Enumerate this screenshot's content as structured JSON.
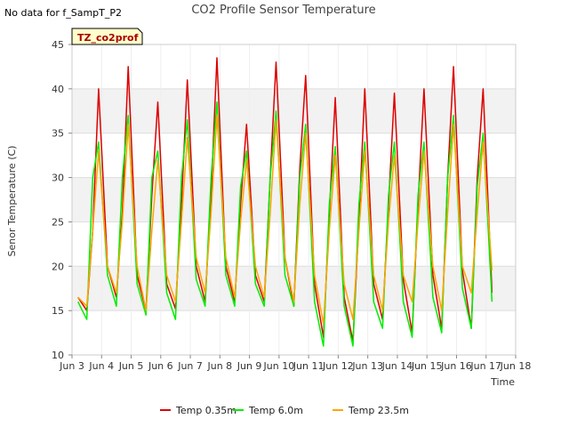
{
  "header": {
    "note": "No data for f_SampT_P2",
    "badge": "TZ_co2prof"
  },
  "chart_data": {
    "type": "line",
    "title": "CO2 Profile Sensor Temperature",
    "xlabel": "Time",
    "ylabel": "Senor Temperature (C)",
    "xlim": [
      3,
      18
    ],
    "ylim": [
      10,
      45
    ],
    "x_ticks": [
      3,
      4,
      5,
      6,
      7,
      8,
      9,
      10,
      11,
      12,
      13,
      14,
      15,
      16,
      17,
      18
    ],
    "x_tick_labels": [
      "Jun 3",
      "Jun 4",
      "Jun 5",
      "Jun 6",
      "Jun 7",
      "Jun 8",
      "Jun 9",
      "Jun 10",
      "Jun 11",
      "Jun 12",
      "Jun 13",
      "Jun 14",
      "Jun 15",
      "Jun 16",
      "Jun 17",
      "Jun 18"
    ],
    "y_ticks": [
      10,
      15,
      20,
      25,
      30,
      35,
      40,
      45
    ],
    "y_tick_labels": [
      "10",
      "15",
      "20",
      "25",
      "30",
      "35",
      "40",
      "45"
    ],
    "series": [
      {
        "name": "Temp 0.35m",
        "color": "#dd0000",
        "x": [
          3.2,
          3.5,
          3.7,
          3.9,
          4.2,
          4.5,
          4.7,
          4.9,
          5.2,
          5.5,
          5.7,
          5.9,
          6.2,
          6.5,
          6.7,
          6.9,
          7.2,
          7.5,
          7.7,
          7.9,
          8.2,
          8.5,
          8.7,
          8.9,
          9.2,
          9.5,
          9.7,
          9.9,
          10.2,
          10.5,
          10.7,
          10.9,
          11.2,
          11.5,
          11.7,
          11.9,
          12.2,
          12.5,
          12.7,
          12.9,
          13.2,
          13.5,
          13.7,
          13.9,
          14.2,
          14.5,
          14.7,
          14.9,
          15.2,
          15.5,
          15.7,
          15.9,
          16.2,
          16.5,
          16.7,
          16.9,
          17.2
        ],
        "y": [
          16.5,
          15.0,
          24.0,
          40.0,
          20.0,
          16.5,
          26.0,
          42.5,
          19.0,
          15.0,
          28.0,
          38.5,
          18.0,
          15.2,
          27.0,
          41.0,
          20.0,
          16.0,
          28.0,
          43.5,
          20.0,
          16.0,
          27.0,
          36.0,
          19.0,
          16.0,
          30.0,
          43.0,
          21.0,
          15.5,
          31.0,
          41.5,
          18.0,
          12.0,
          26.0,
          39.0,
          16.5,
          11.5,
          25.0,
          40.0,
          18.0,
          14.0,
          27.0,
          39.5,
          18.5,
          12.5,
          27.0,
          40.0,
          19.0,
          13.0,
          30.0,
          42.5,
          19.5,
          13.0,
          30.0,
          40.0,
          17.0
        ]
      },
      {
        "name": "Temp 6.0m",
        "color": "#00ee00",
        "x": [
          3.2,
          3.5,
          3.7,
          3.9,
          4.2,
          4.5,
          4.7,
          4.9,
          5.2,
          5.5,
          5.7,
          5.9,
          6.2,
          6.5,
          6.7,
          6.9,
          7.2,
          7.5,
          7.7,
          7.9,
          8.2,
          8.5,
          8.7,
          8.9,
          9.2,
          9.5,
          9.7,
          9.9,
          10.2,
          10.5,
          10.7,
          10.9,
          11.2,
          11.5,
          11.7,
          11.9,
          12.2,
          12.5,
          12.7,
          12.9,
          13.2,
          13.5,
          13.7,
          13.9,
          14.2,
          14.5,
          14.7,
          14.9,
          15.2,
          15.5,
          15.7,
          15.9,
          16.2,
          16.5,
          16.7,
          16.9,
          17.2
        ],
        "y": [
          16.0,
          14.0,
          30.0,
          34.0,
          19.0,
          15.5,
          30.0,
          37.0,
          18.0,
          14.5,
          30.0,
          33.0,
          17.0,
          14.0,
          30.0,
          36.5,
          18.5,
          15.5,
          30.0,
          38.5,
          19.0,
          15.5,
          29.0,
          33.0,
          18.0,
          15.5,
          30.0,
          37.5,
          19.0,
          15.5,
          30.0,
          36.0,
          16.0,
          11.0,
          27.0,
          33.5,
          15.5,
          11.0,
          27.0,
          34.0,
          16.0,
          13.0,
          28.0,
          34.0,
          16.0,
          12.0,
          28.0,
          34.0,
          16.5,
          12.5,
          30.0,
          37.0,
          17.5,
          13.0,
          29.0,
          35.0,
          16.0
        ]
      },
      {
        "name": "Temp 23.5m",
        "color": "#ffa500",
        "x": [
          3.2,
          3.5,
          3.7,
          3.9,
          4.2,
          4.5,
          4.7,
          4.9,
          5.2,
          5.5,
          5.7,
          5.9,
          6.2,
          6.5,
          6.7,
          6.9,
          7.2,
          7.5,
          7.7,
          7.9,
          8.2,
          8.5,
          8.7,
          8.9,
          9.2,
          9.5,
          9.7,
          9.9,
          10.2,
          10.5,
          10.7,
          10.9,
          11.2,
          11.5,
          11.7,
          11.9,
          12.2,
          12.5,
          12.7,
          12.9,
          13.2,
          13.5,
          13.7,
          13.9,
          14.2,
          14.5,
          14.7,
          14.9,
          15.2,
          15.5,
          15.7,
          15.9,
          16.2,
          16.5,
          16.7,
          16.9,
          17.2
        ],
        "y": [
          16.5,
          15.5,
          24.0,
          33.0,
          20.0,
          17.0,
          25.0,
          36.0,
          20.0,
          15.0,
          24.0,
          32.0,
          19.0,
          16.0,
          25.0,
          34.5,
          21.0,
          17.0,
          26.0,
          37.0,
          21.0,
          16.5,
          25.0,
          32.0,
          20.0,
          16.5,
          26.0,
          36.5,
          21.0,
          16.0,
          27.0,
          35.0,
          19.0,
          13.5,
          24.0,
          32.5,
          18.0,
          14.0,
          24.0,
          33.0,
          19.0,
          15.0,
          25.0,
          32.5,
          19.0,
          16.0,
          25.0,
          33.0,
          20.0,
          15.0,
          26.0,
          36.0,
          20.0,
          17.0,
          26.0,
          34.0,
          19.5
        ]
      }
    ],
    "legend": {
      "position": "bottom-center",
      "entries": [
        "Temp 0.35m",
        "Temp 6.0m",
        "Temp 23.5m"
      ]
    },
    "bands": [
      {
        "from": 15,
        "to": 20,
        "color": "#f2f2f2"
      },
      {
        "from": 25,
        "to": 30,
        "color": "#f2f2f2"
      },
      {
        "from": 35,
        "to": 40,
        "color": "#f2f2f2"
      }
    ],
    "grid": true
  }
}
